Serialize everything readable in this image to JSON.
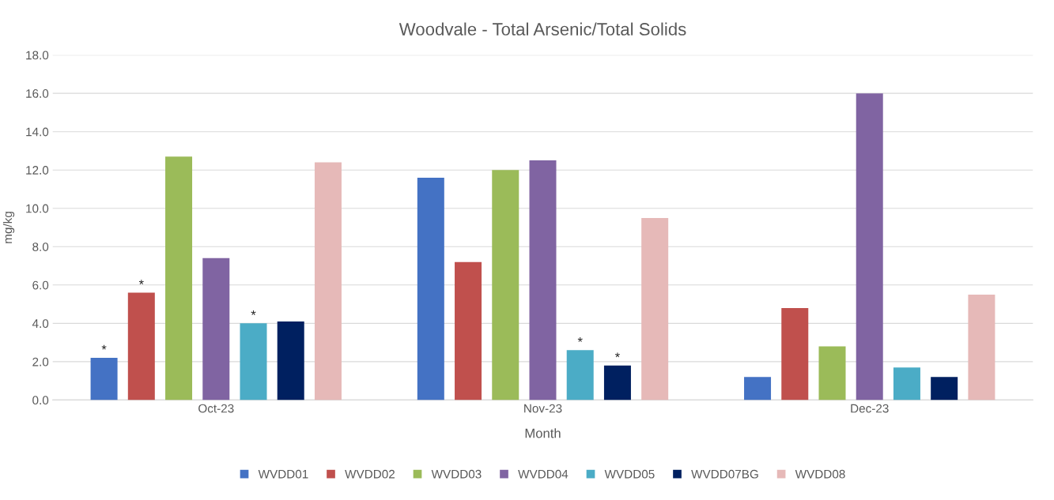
{
  "chart_data": {
    "type": "bar",
    "title": "Woodvale - Total Arsenic/Total Solids",
    "xlabel": "Month",
    "ylabel": "mg/kg",
    "categories": [
      "Oct-23",
      "Nov-23",
      "Dec-23"
    ],
    "series": [
      {
        "name": "WVDD01",
        "color": "#4472c4",
        "values": [
          2.2,
          11.6,
          1.2
        ],
        "value_labels": [
          "*",
          null,
          null
        ]
      },
      {
        "name": "WVDD02",
        "color": "#c0504d",
        "values": [
          5.6,
          7.2,
          4.8
        ],
        "value_labels": [
          "*",
          null,
          null
        ]
      },
      {
        "name": "WVDD03",
        "color": "#9bbb59",
        "values": [
          12.7,
          12.0,
          2.8
        ]
      },
      {
        "name": "WVDD04",
        "color": "#8064a2",
        "values": [
          7.4,
          12.5,
          16.0
        ]
      },
      {
        "name": "WVDD05",
        "color": "#4bacc6",
        "values": [
          4.0,
          2.6,
          1.7
        ],
        "value_labels": [
          "*",
          "*",
          null
        ]
      },
      {
        "name": "WVDD07BG",
        "color": "#002060",
        "values": [
          4.1,
          1.8,
          1.2
        ],
        "value_labels": [
          null,
          "*",
          null
        ]
      },
      {
        "name": "WVDD08",
        "color": "#e6b9b8",
        "values": [
          12.4,
          9.5,
          5.5
        ]
      }
    ],
    "ylim": [
      0,
      18
    ],
    "yticks": [
      {
        "value": 0,
        "label": "0.0"
      },
      {
        "value": 2,
        "label": "2.0"
      },
      {
        "value": 4,
        "label": "4.0"
      },
      {
        "value": 6,
        "label": "6.0"
      },
      {
        "value": 8,
        "label": "8.0"
      },
      {
        "value": 10,
        "label": "10.0"
      },
      {
        "value": 12,
        "label": "12.0"
      },
      {
        "value": 14,
        "label": "14.0"
      },
      {
        "value": 16,
        "label": "16.0"
      },
      {
        "value": 18,
        "label": "18.0"
      }
    ],
    "grid": "y",
    "legend": "bottom"
  }
}
